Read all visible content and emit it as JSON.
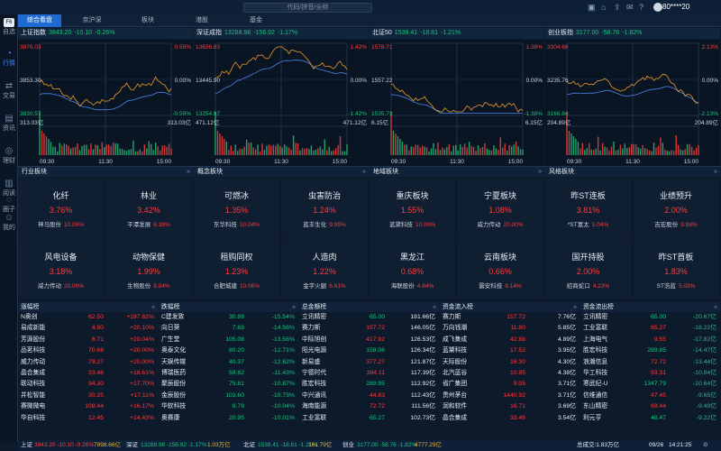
{
  "app": {
    "search_placeholder": "代码/拼音/全称",
    "user": "80****20",
    "logo": "F6"
  },
  "tabs": [
    "综合看盘",
    "京沪深",
    "板块",
    "港股",
    "基金"
  ],
  "sidebar": [
    {
      "label": "自选",
      "icon": "logo-icon"
    },
    {
      "label": "行情",
      "icon": "chart-icon"
    },
    {
      "label": "交易",
      "icon": "trade-icon"
    },
    {
      "label": "资讯",
      "icon": "news-icon"
    },
    {
      "label": "理财",
      "icon": "wealth-icon"
    },
    {
      "label": "阅读",
      "icon": "book-icon"
    },
    {
      "label": "圈子",
      "icon": "circle-icon"
    },
    {
      "label": "我的",
      "icon": "user-icon"
    }
  ],
  "indices": [
    {
      "name": "上证指数",
      "price": "3843.20",
      "change": "-10.10",
      "pct": "-0.26%",
      "hi": "3876.03",
      "mid": "3853.30",
      "lo": "3830.57",
      "hi_pct": "0.59%",
      "mid_pct": "0.00%",
      "lo_pct": "-0.59%",
      "vol": "313.03亿",
      "t0": "09:30",
      "t1": "11:30",
      "t2": "15:00"
    },
    {
      "name": "深证成指",
      "price": "13288.98",
      "change": "-156.92",
      "pct": "-1.17%",
      "hi": "13636.83",
      "mid": "13445.90",
      "lo": "13254.97",
      "hi_pct": "1.42%",
      "mid_pct": "0.00%",
      "lo_pct": "-1.42%",
      "vol": "471.12亿",
      "t0": "09:30",
      "t1": "11:30",
      "t2": "15:00"
    },
    {
      "name": "北证50",
      "price": "1538.41",
      "change": "-18.81",
      "pct": "-1.21%",
      "hi": "1578.71",
      "mid": "1557.22",
      "lo": "1535.73",
      "hi_pct": "1.38%",
      "mid_pct": "0.00%",
      "lo_pct": "-1.38%",
      "vol": "6.15亿",
      "t0": "09:30",
      "t1": "11:30",
      "t2": "15:00"
    },
    {
      "name": "创业板指",
      "price": "3177.00",
      "change": "-58.76",
      "pct": "-1.82%",
      "hi": "3304.68",
      "mid": "3235.76",
      "lo": "3166.84",
      "hi_pct": "2.13%",
      "mid_pct": "0.00%",
      "lo_pct": "-2.13%",
      "vol": "204.89亿",
      "t0": "09:30",
      "t1": "11:30",
      "t2": "15:00"
    }
  ],
  "sections": [
    {
      "label": "行业板块"
    },
    {
      "label": "概念板块"
    },
    {
      "label": "地域板块"
    },
    {
      "label": "风格板块"
    }
  ],
  "sectors": [
    {
      "name": "化纤",
      "pct": "3.76%",
      "stock": "神马股份",
      "spct": "10.05%"
    },
    {
      "name": "林业",
      "pct": "3.42%",
      "stock": "平潭发展",
      "spct": "6.38%"
    },
    {
      "name": "可燃冰",
      "pct": "1.35%",
      "stock": "东华科技",
      "spct": "10.04%"
    },
    {
      "name": "虫害防治",
      "pct": "1.24%",
      "stock": "蓝丰生化",
      "spct": "9.99%"
    },
    {
      "name": "重庆板块",
      "pct": "1.55%",
      "stock": "蓝黛科技",
      "spct": "10.00%"
    },
    {
      "name": "宁夏板块",
      "pct": "1.08%",
      "stock": "威力传动",
      "spct": "20.00%"
    },
    {
      "name": "昨ST连板",
      "pct": "3.81%",
      "stock": "*ST富太",
      "spct": "5.04%"
    },
    {
      "name": "业绩预升",
      "pct": "2.00%",
      "stock": "吉宏股份",
      "spct": "9.98%"
    },
    {
      "name": "风电设备",
      "pct": "3.18%",
      "stock": "威力传动",
      "spct": "20.00%"
    },
    {
      "name": "动物保健",
      "pct": "1.99%",
      "stock": "生物股份",
      "spct": "8.04%"
    },
    {
      "name": "租购同权",
      "pct": "1.23%",
      "stock": "合肥城建",
      "spct": "10.06%"
    },
    {
      "name": "人造肉",
      "pct": "1.22%",
      "stock": "金字火腿",
      "spct": "6.61%"
    },
    {
      "name": "黑龙江",
      "pct": "0.68%",
      "stock": "海联股份",
      "spct": "4.84%"
    },
    {
      "name": "云南板块",
      "pct": "0.66%",
      "stock": "震安科技",
      "spct": "9.14%"
    },
    {
      "name": "国开持股",
      "pct": "2.00%",
      "stock": "招商蛇口",
      "spct": "4.23%"
    },
    {
      "name": "昨ST首板",
      "pct": "1.83%",
      "stock": "ST浩蓝",
      "spct": "5.03%"
    }
  ],
  "rankings": [
    {
      "title": "涨幅榜",
      "rows": [
        [
          "N奥创",
          "62.50",
          "+197.62%"
        ],
        [
          "易成新能",
          "4.90",
          "+20.10%"
        ],
        [
          "芳源股份",
          "6.71",
          "+20.04%"
        ],
        [
          "品茗科技",
          "70.68",
          "+20.00%"
        ],
        [
          "威力传动",
          "79.27",
          "+20.00%"
        ],
        [
          "晶合集成",
          "33.46",
          "+18.61%"
        ],
        [
          "联动科技",
          "94.30",
          "+17.70%"
        ],
        [
          "井松智能",
          "30.25",
          "+17.11%"
        ],
        [
          "赛微微电",
          "109.44",
          "+16.17%"
        ],
        [
          "华自科技",
          "12.45",
          "+14.43%"
        ]
      ]
    },
    {
      "title": "跌幅榜",
      "rows": [
        [
          "C建发致",
          "30.88",
          "-15.54%"
        ],
        [
          "向日葵",
          "7.69",
          "-14.56%"
        ],
        [
          "广生堂",
          "105.08",
          "-13.56%"
        ],
        [
          "奥泰文化",
          "80.20",
          "-12.71%"
        ],
        [
          "天娱传媒",
          "40.37",
          "-12.62%"
        ],
        [
          "博瑞医药",
          "58.82",
          "-11.43%"
        ],
        [
          "聚辰股份",
          "75.81",
          "-10.87%"
        ],
        [
          "金辰股份",
          "103.60",
          "-10.73%"
        ],
        [
          "华软科技",
          "8.78",
          "-10.04%"
        ],
        [
          "奥赛康",
          "20.95",
          "-10.01%"
        ]
      ]
    },
    {
      "title": "总金额榜",
      "rows": [
        [
          "立讯精密",
          "65.00",
          "181.66亿"
        ],
        [
          "赛力斯",
          "157.72",
          "146.05亿"
        ],
        [
          "中际旭创",
          "417.92",
          "126.53亿"
        ],
        [
          "阳光电源",
          "159.06",
          "126.34亿"
        ],
        [
          "新易盛",
          "377.27",
          "121.87亿"
        ],
        [
          "宁德时代",
          "384.11",
          "117.39亿"
        ],
        [
          "胜宏科技",
          "289.95",
          "112.92亿"
        ],
        [
          "中兴通讯",
          "44.83",
          "112.43亿"
        ],
        [
          "海南能源",
          "72.72",
          "111.56亿"
        ],
        [
          "工业富联",
          "65.27",
          "102.73亿"
        ]
      ]
    },
    {
      "title": "资金流入榜",
      "rows": [
        [
          "赛力斯",
          "157.72",
          "7.76亿"
        ],
        [
          "万向钱潮",
          "11.80",
          "5.85亿"
        ],
        [
          "成飞集成",
          "42.88",
          "4.89亿"
        ],
        [
          "蓝黛科技",
          "17.52",
          "3.95亿"
        ],
        [
          "天际股份",
          "16.30",
          "4.30亿"
        ],
        [
          "北汽蓝谷",
          "10.85",
          "4.38亿"
        ],
        [
          "省广集团",
          "9.05",
          "3.71亿"
        ],
        [
          "贵州茅台",
          "1440.92",
          "3.71亿"
        ],
        [
          "润和软件",
          "16.71",
          "3.69亿"
        ],
        [
          "晶合集成",
          "33.46",
          "3.54亿"
        ]
      ]
    },
    {
      "title": "资金流出榜",
      "rows": [
        [
          "立讯精密",
          "65.00",
          "-20.67亿"
        ],
        [
          "工业富联",
          "65.27",
          "-18.22亿"
        ],
        [
          "上海电气",
          "9.55",
          "-17.82亿"
        ],
        [
          "胜宏科技",
          "289.95",
          "-14.47亿"
        ],
        [
          "浪潮信息",
          "72.72",
          "-13.44亿"
        ],
        [
          "华工科技",
          "93.31",
          "-10.84亿"
        ],
        [
          "寒武纪-U",
          "1347.79",
          "-10.64亿"
        ],
        [
          "信维通信",
          "47.45",
          "-9.65亿"
        ],
        [
          "东山精密",
          "69.44",
          "-9.49亿"
        ],
        [
          "利元亨",
          "48.47",
          "-9.22亿"
        ]
      ]
    }
  ],
  "status": {
    "sh_name": "上证",
    "sh": "3843.20 -10.10 -0.26%",
    "sh_amt": "7898.66亿",
    "sz_name": "深证",
    "sz": "13288.98 -156.92 -1.17%",
    "sz_amt": "1.03万亿",
    "bz_name": "北证",
    "bz": "1538.41 -18.81 -1.21%",
    "bz_amt": "161.79亿",
    "cy_name": "创业",
    "cy": "3177.00 -58.76 -1.82%",
    "cy_amt": "4777.29亿",
    "total": "总成交:1.83万亿",
    "date": "09/26",
    "time": "14:21:25"
  },
  "colors": {
    "accent": "#1e6ad2",
    "up": "#ff3b3b",
    "down": "#19c37d",
    "price_line": "#e89a2c",
    "avg_line": "#4a86e8"
  }
}
